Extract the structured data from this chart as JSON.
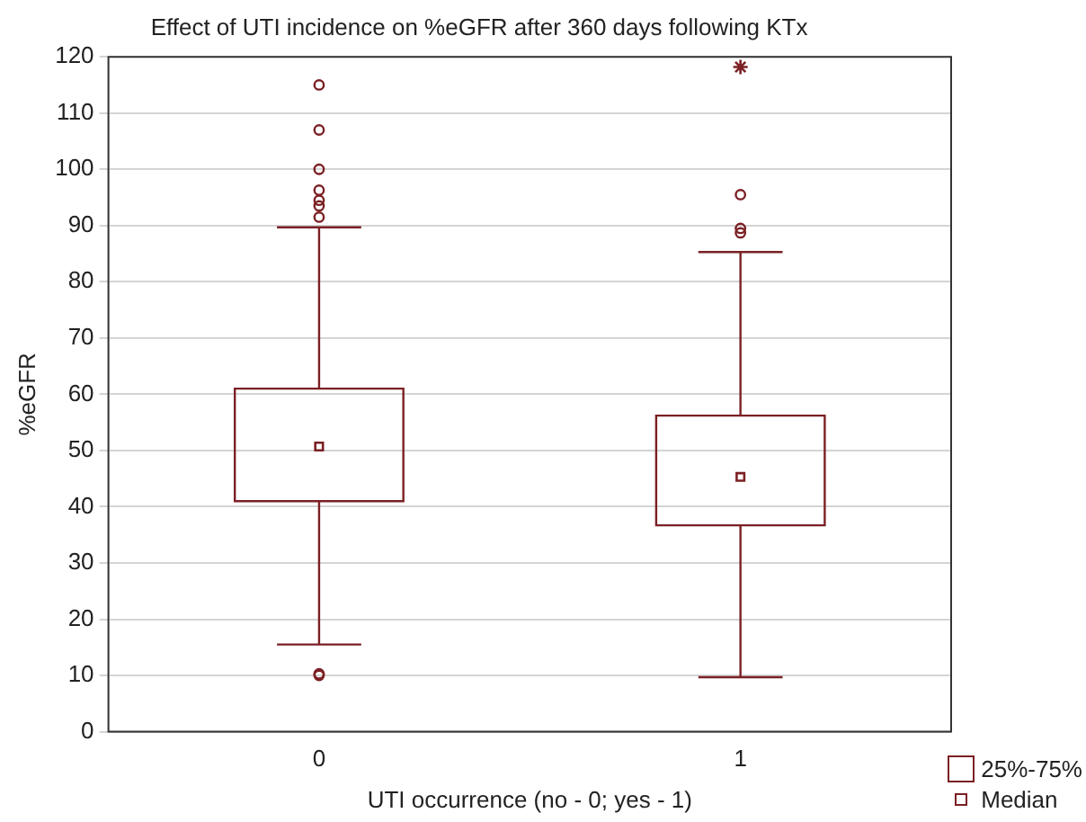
{
  "chart_data": {
    "type": "box",
    "title": "Effect of UTI incidence on %eGFR after 360 days following KTx",
    "xlabel": "UTI occurrence (no - 0; yes - 1)",
    "ylabel": "%eGFR",
    "categories": [
      "0",
      "1"
    ],
    "series": [
      {
        "type": "box",
        "name": "25%-75%",
        "color": "#7b2024",
        "boxes": [
          {
            "low": 15.5,
            "q1": 41,
            "q3": 61,
            "high": 89.7,
            "outliers": [
              115,
              107,
              100,
              96.3,
              94.5,
              93.5,
              91.5,
              10.3,
              10
            ]
          },
          {
            "low": 9.7,
            "q1": 36.7,
            "q3": 56.2,
            "high": 85.3,
            "outliers": [
              95.5,
              89.5,
              88.7
            ]
          }
        ]
      },
      {
        "type": "scatter",
        "name": "Median",
        "color": "#7b2024",
        "marker": "square",
        "x": [
          "0",
          "1"
        ],
        "values": [
          50.7,
          45.3
        ]
      },
      {
        "type": "scatter",
        "color": "#7b2024",
        "marker": "cross",
        "x": [
          "1"
        ],
        "values": [
          118.2
        ]
      }
    ],
    "ylim": [
      0,
      120
    ],
    "yticks": [
      0,
      10,
      20,
      30,
      40,
      50,
      60,
      70,
      80,
      90,
      100,
      110,
      120
    ],
    "grid": "y",
    "legend": "bottom right"
  }
}
